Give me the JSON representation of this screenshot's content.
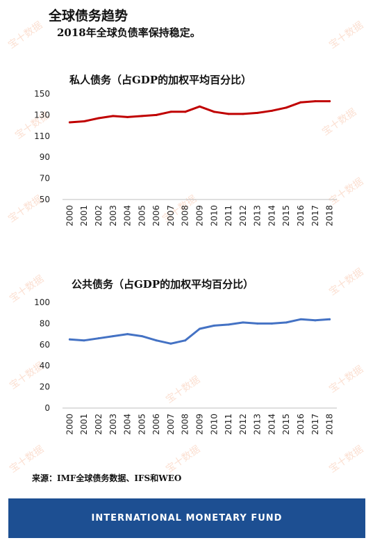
{
  "page": {
    "title": "全球债务趋势",
    "subtitle": "2018年全球负债率保持稳定。",
    "source": "来源：IMF全球债务数据、IFS和WEO",
    "footer": "INTERNATIONAL MONETARY FUND",
    "watermark": "宝十数据"
  },
  "chart_data": [
    {
      "type": "line",
      "title": "私人债务（占GDP的加权平均百分比）",
      "color": "#c00000",
      "x": [
        "2000",
        "2001",
        "2002",
        "2003",
        "2004",
        "2005",
        "2006",
        "2007",
        "2008",
        "2009",
        "2010",
        "2011",
        "2012",
        "2013",
        "2014",
        "2015",
        "2016",
        "2017",
        "2018"
      ],
      "y": [
        123,
        124,
        127,
        129,
        128,
        129,
        130,
        133,
        133,
        138,
        133,
        131,
        131,
        132,
        134,
        137,
        142,
        143,
        143
      ],
      "ylim": [
        50,
        150
      ],
      "yticks": [
        50,
        70,
        90,
        110,
        130,
        150
      ],
      "grid": false,
      "legend": "none"
    },
    {
      "type": "line",
      "title": "公共债务（占GDP的加权平均百分比）",
      "color": "#4472c4",
      "x": [
        "2000",
        "2001",
        "2002",
        "2003",
        "2004",
        "2005",
        "2006",
        "2007",
        "2008",
        "2009",
        "2010",
        "2011",
        "2012",
        "2013",
        "2014",
        "2015",
        "2016",
        "2017",
        "2018"
      ],
      "y": [
        65,
        64,
        66,
        68,
        70,
        68,
        64,
        61,
        64,
        75,
        78,
        79,
        81,
        80,
        80,
        81,
        84,
        83,
        84
      ],
      "ylim": [
        0,
        100
      ],
      "yticks": [
        0,
        20,
        40,
        60,
        80,
        100
      ],
      "grid": false,
      "legend": "none"
    }
  ]
}
